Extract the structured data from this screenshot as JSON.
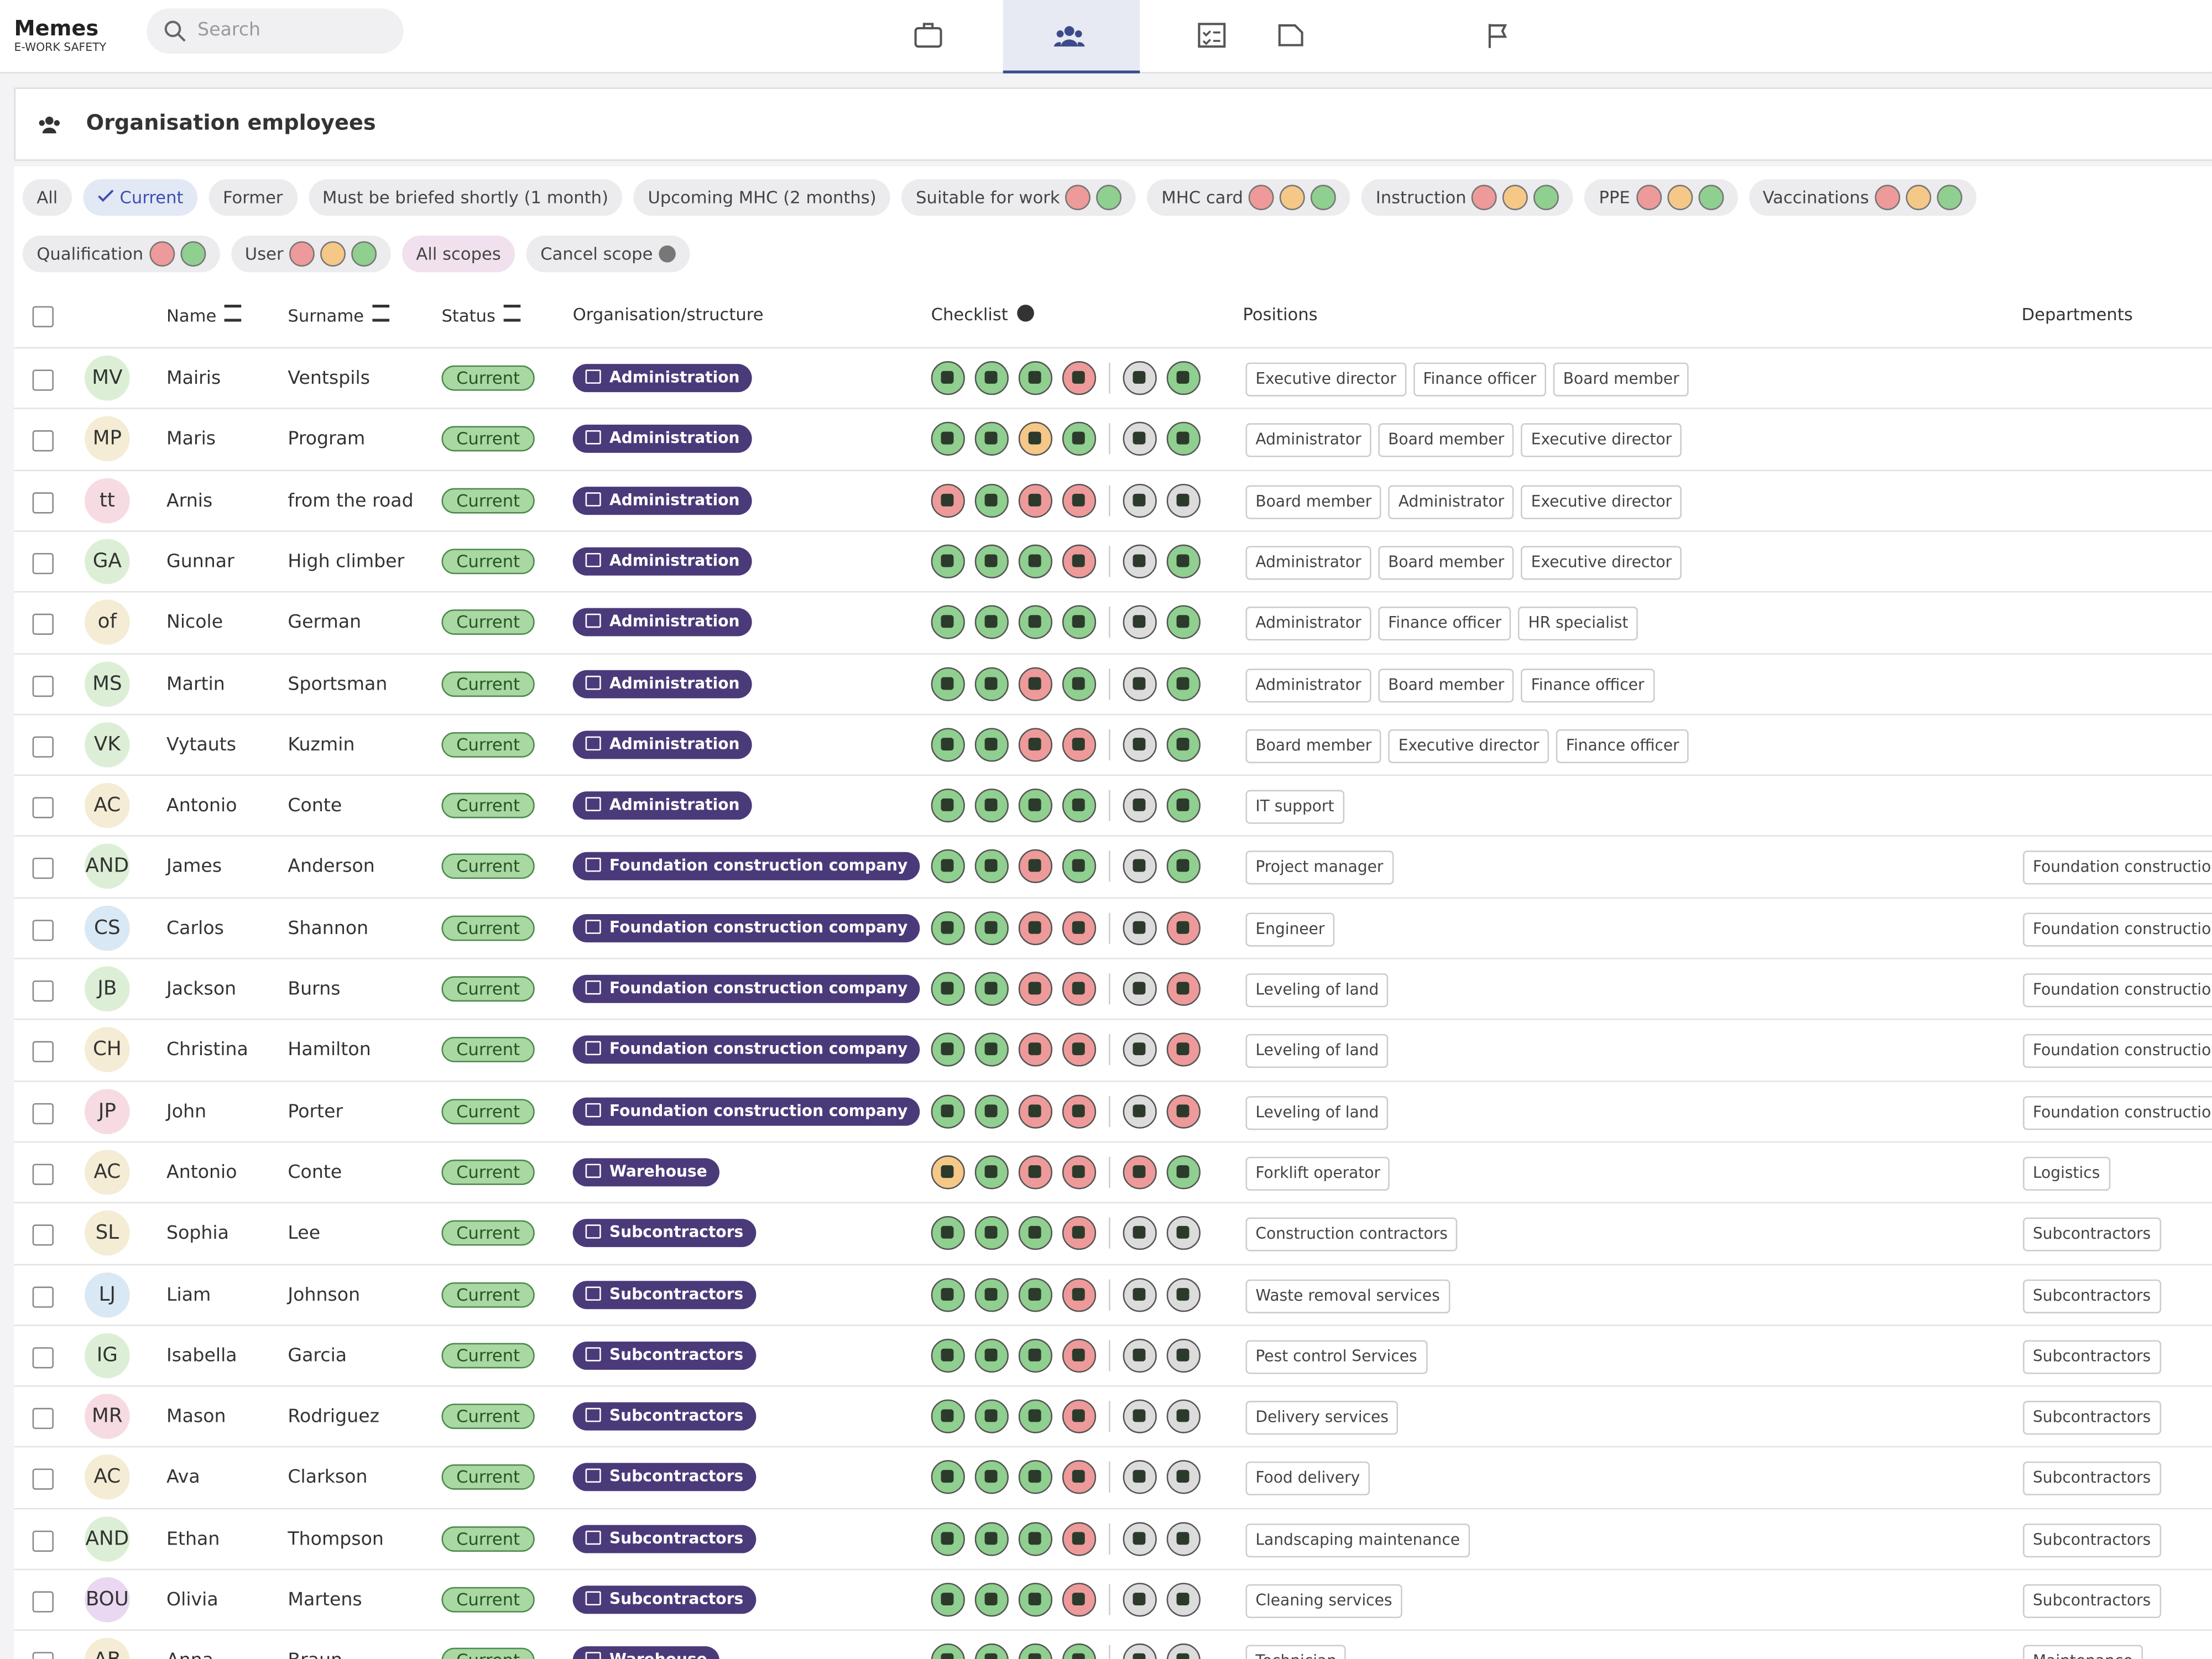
{
  "header": {
    "brand": "Memes",
    "brand_sub": "E-WORK SAFETY",
    "search_placeholder": "Search"
  },
  "panel": {
    "title": "Organisation employees"
  },
  "filter_rows": [
    [
      {
        "label": "All"
      },
      {
        "label": "Current",
        "active": true
      },
      {
        "label": "Former"
      },
      {
        "label": "Must be briefed shortly (1 month)"
      },
      {
        "label": "Upcoming MHC (2 months)"
      },
      {
        "label": "Suitable for work",
        "dots": [
          "#ee9a9a",
          "#8fcf8f"
        ]
      },
      {
        "label": "MHC card",
        "dots": [
          "#ee9a9a",
          "#f5c888",
          "#8fcf8f"
        ]
      },
      {
        "label": "Instruction",
        "dots": [
          "#ee9a9a",
          "#f5c888",
          "#8fcf8f"
        ]
      },
      {
        "label": "PPE",
        "dots": [
          "#ee9a9a",
          "#f5c888",
          "#8fcf8f"
        ]
      },
      {
        "label": "Vaccinations",
        "dots": [
          "#ee9a9a",
          "#f5c888",
          "#8fcf8f"
        ]
      }
    ],
    [
      {
        "label": "Qualification",
        "dots": [
          "#ee9a9a",
          "#8fcf8f"
        ]
      },
      {
        "label": "User",
        "dots": [
          "#ee9a9a",
          "#f5c888",
          "#8fcf8f"
        ]
      },
      {
        "label": "All scopes",
        "highlight": true
      },
      {
        "label": "Cancel scope",
        "cancel": true
      }
    ]
  ],
  "table": {
    "columns": [
      "Name",
      "Surname",
      "Status",
      "Organisation/structure",
      "Checklist",
      "Positions",
      "Departments"
    ],
    "rows": [
      {
        "initials": "MV",
        "avatar": "#dcefd6",
        "name": "Mairis",
        "surname": "Ventspils",
        "status": "Current",
        "org": "Administration",
        "checklist": [
          "#8fcf8f",
          "#8fcf8f",
          "#8fcf8f",
          "#ee9a9a",
          "#dcdcdc",
          "#8fcf8f"
        ],
        "positions": [
          "Executive director",
          "Finance officer",
          "Board member"
        ],
        "departments": []
      },
      {
        "initials": "MP",
        "avatar": "#f4ecd4",
        "name": "Maris",
        "surname": "Program",
        "status": "Current",
        "org": "Administration",
        "checklist": [
          "#8fcf8f",
          "#8fcf8f",
          "#f5c888",
          "#8fcf8f",
          "#dcdcdc",
          "#8fcf8f"
        ],
        "positions": [
          "Administrator",
          "Board member",
          "Executive director"
        ],
        "departments": []
      },
      {
        "initials": "tt",
        "avatar": "#f6dbe2",
        "name": "Arnis",
        "surname": "from the road",
        "status": "Current",
        "org": "Administration",
        "checklist": [
          "#ee9a9a",
          "#8fcf8f",
          "#ee9a9a",
          "#ee9a9a",
          "#dcdcdc",
          "#dcdcdc"
        ],
        "positions": [
          "Board member",
          "Administrator",
          "Executive director"
        ],
        "departments": []
      },
      {
        "initials": "GA",
        "avatar": "#dcefd6",
        "name": "Gunnar",
        "surname": "High climber",
        "status": "Current",
        "org": "Administration",
        "checklist": [
          "#8fcf8f",
          "#8fcf8f",
          "#8fcf8f",
          "#ee9a9a",
          "#dcdcdc",
          "#8fcf8f"
        ],
        "positions": [
          "Administrator",
          "Board member",
          "Executive director"
        ],
        "departments": []
      },
      {
        "initials": "of",
        "avatar": "#f4ecd4",
        "name": "Nicole",
        "surname": "German",
        "status": "Current",
        "org": "Administration",
        "checklist": [
          "#8fcf8f",
          "#8fcf8f",
          "#8fcf8f",
          "#8fcf8f",
          "#dcdcdc",
          "#8fcf8f"
        ],
        "positions": [
          "Administrator",
          "Finance officer",
          "HR specialist"
        ],
        "departments": []
      },
      {
        "initials": "MS",
        "avatar": "#dcefd6",
        "name": "Martin",
        "surname": "Sportsman",
        "status": "Current",
        "org": "Administration",
        "checklist": [
          "#8fcf8f",
          "#8fcf8f",
          "#ee9a9a",
          "#8fcf8f",
          "#dcdcdc",
          "#8fcf8f"
        ],
        "positions": [
          "Administrator",
          "Board member",
          "Finance officer"
        ],
        "departments": []
      },
      {
        "initials": "VK",
        "avatar": "#dcefd6",
        "name": "Vytauts",
        "surname": "Kuzmin",
        "status": "Current",
        "org": "Administration",
        "checklist": [
          "#8fcf8f",
          "#8fcf8f",
          "#ee9a9a",
          "#ee9a9a",
          "#dcdcdc",
          "#8fcf8f"
        ],
        "positions": [
          "Board member",
          "Executive director",
          "Finance officer"
        ],
        "departments": []
      },
      {
        "initials": "AC",
        "avatar": "#f4ecd4",
        "name": "Antonio",
        "surname": "Conte",
        "status": "Current",
        "org": "Administration",
        "checklist": [
          "#8fcf8f",
          "#8fcf8f",
          "#8fcf8f",
          "#8fcf8f",
          "#dcdcdc",
          "#8fcf8f"
        ],
        "positions": [
          "IT support"
        ],
        "departments": []
      },
      {
        "initials": "AND",
        "avatar": "#dcefd6",
        "name": "James",
        "surname": "Anderson",
        "status": "Current",
        "org": "Foundation construction company",
        "checklist": [
          "#8fcf8f",
          "#8fcf8f",
          "#ee9a9a",
          "#8fcf8f",
          "#dcdcdc",
          "#8fcf8f"
        ],
        "positions": [
          "Project manager"
        ],
        "departments": [
          "Foundation construction"
        ]
      },
      {
        "initials": "CS",
        "avatar": "#d8e8f4",
        "name": "Carlos",
        "surname": "Shannon",
        "status": "Current",
        "org": "Foundation construction company",
        "checklist": [
          "#8fcf8f",
          "#8fcf8f",
          "#ee9a9a",
          "#ee9a9a",
          "#dcdcdc",
          "#ee9a9a"
        ],
        "positions": [
          "Engineer"
        ],
        "departments": [
          "Foundation construction"
        ]
      },
      {
        "initials": "JB",
        "avatar": "#dcefd6",
        "name": "Jackson",
        "surname": "Burns",
        "status": "Current",
        "org": "Foundation construction company",
        "checklist": [
          "#8fcf8f",
          "#8fcf8f",
          "#ee9a9a",
          "#ee9a9a",
          "#dcdcdc",
          "#ee9a9a"
        ],
        "positions": [
          "Leveling of land"
        ],
        "departments": [
          "Foundation construction"
        ]
      },
      {
        "initials": "CH",
        "avatar": "#f4ecd4",
        "name": "Christina",
        "surname": "Hamilton",
        "status": "Current",
        "org": "Foundation construction company",
        "checklist": [
          "#8fcf8f",
          "#8fcf8f",
          "#ee9a9a",
          "#ee9a9a",
          "#dcdcdc",
          "#ee9a9a"
        ],
        "positions": [
          "Leveling of land"
        ],
        "departments": [
          "Foundation construction"
        ]
      },
      {
        "initials": "JP",
        "avatar": "#f6dbe2",
        "name": "John",
        "surname": "Porter",
        "status": "Current",
        "org": "Foundation construction company",
        "checklist": [
          "#8fcf8f",
          "#8fcf8f",
          "#ee9a9a",
          "#ee9a9a",
          "#dcdcdc",
          "#ee9a9a"
        ],
        "positions": [
          "Leveling of land"
        ],
        "departments": [
          "Foundation construction"
        ]
      },
      {
        "initials": "AC",
        "avatar": "#f4ecd4",
        "name": "Antonio",
        "surname": "Conte",
        "status": "Current",
        "org": "Warehouse",
        "checklist": [
          "#f5c888",
          "#8fcf8f",
          "#ee9a9a",
          "#ee9a9a",
          "#ee9a9a",
          "#8fcf8f"
        ],
        "positions": [
          "Forklift operator"
        ],
        "departments": [
          "Logistics"
        ]
      },
      {
        "initials": "SL",
        "avatar": "#f4ecd4",
        "name": "Sophia",
        "surname": "Lee",
        "status": "Current",
        "org": "Subcontractors",
        "checklist": [
          "#8fcf8f",
          "#8fcf8f",
          "#8fcf8f",
          "#ee9a9a",
          "#dcdcdc",
          "#dcdcdc"
        ],
        "positions": [
          "Construction contractors"
        ],
        "departments": [
          "Subcontractors"
        ]
      },
      {
        "initials": "LJ",
        "avatar": "#d8e8f4",
        "name": "Liam",
        "surname": "Johnson",
        "status": "Current",
        "org": "Subcontractors",
        "checklist": [
          "#8fcf8f",
          "#8fcf8f",
          "#8fcf8f",
          "#ee9a9a",
          "#dcdcdc",
          "#dcdcdc"
        ],
        "positions": [
          "Waste removal services"
        ],
        "departments": [
          "Subcontractors"
        ]
      },
      {
        "initials": "IG",
        "avatar": "#dcefd6",
        "name": "Isabella",
        "surname": "Garcia",
        "status": "Current",
        "org": "Subcontractors",
        "checklist": [
          "#8fcf8f",
          "#8fcf8f",
          "#8fcf8f",
          "#ee9a9a",
          "#dcdcdc",
          "#dcdcdc"
        ],
        "positions": [
          "Pest control Services"
        ],
        "departments": [
          "Subcontractors"
        ]
      },
      {
        "initials": "MR",
        "avatar": "#f6dbe2",
        "name": "Mason",
        "surname": "Rodriguez",
        "status": "Current",
        "org": "Subcontractors",
        "checklist": [
          "#8fcf8f",
          "#8fcf8f",
          "#8fcf8f",
          "#ee9a9a",
          "#dcdcdc",
          "#dcdcdc"
        ],
        "positions": [
          "Delivery services"
        ],
        "departments": [
          "Subcontractors"
        ]
      },
      {
        "initials": "AC",
        "avatar": "#f4ecd4",
        "name": "Ava",
        "surname": "Clarkson",
        "status": "Current",
        "org": "Subcontractors",
        "checklist": [
          "#8fcf8f",
          "#8fcf8f",
          "#8fcf8f",
          "#ee9a9a",
          "#dcdcdc",
          "#dcdcdc"
        ],
        "positions": [
          "Food delivery"
        ],
        "departments": [
          "Subcontractors"
        ]
      },
      {
        "initials": "AND",
        "avatar": "#dcefd6",
        "name": "Ethan",
        "surname": "Thompson",
        "status": "Current",
        "org": "Subcontractors",
        "checklist": [
          "#8fcf8f",
          "#8fcf8f",
          "#8fcf8f",
          "#ee9a9a",
          "#dcdcdc",
          "#dcdcdc"
        ],
        "positions": [
          "Landscaping maintenance"
        ],
        "departments": [
          "Subcontractors"
        ]
      },
      {
        "initials": "BOU",
        "avatar": "#ead8f2",
        "name": "Olivia",
        "surname": "Martens",
        "status": "Current",
        "org": "Subcontractors",
        "checklist": [
          "#8fcf8f",
          "#8fcf8f",
          "#8fcf8f",
          "#ee9a9a",
          "#dcdcdc",
          "#dcdcdc"
        ],
        "positions": [
          "Cleaning services"
        ],
        "departments": [
          "Subcontractors"
        ]
      },
      {
        "initials": "AB",
        "avatar": "#f4ecd4",
        "name": "Anna",
        "surname": "Braun",
        "status": "Current",
        "org": "Warehouse",
        "checklist": [
          "#8fcf8f",
          "#8fcf8f",
          "#8fcf8f",
          "#8fcf8f",
          "#dcdcdc",
          "#dcdcdc"
        ],
        "positions": [
          "Technician"
        ],
        "departments": [
          "Maintenance"
        ]
      }
    ]
  }
}
